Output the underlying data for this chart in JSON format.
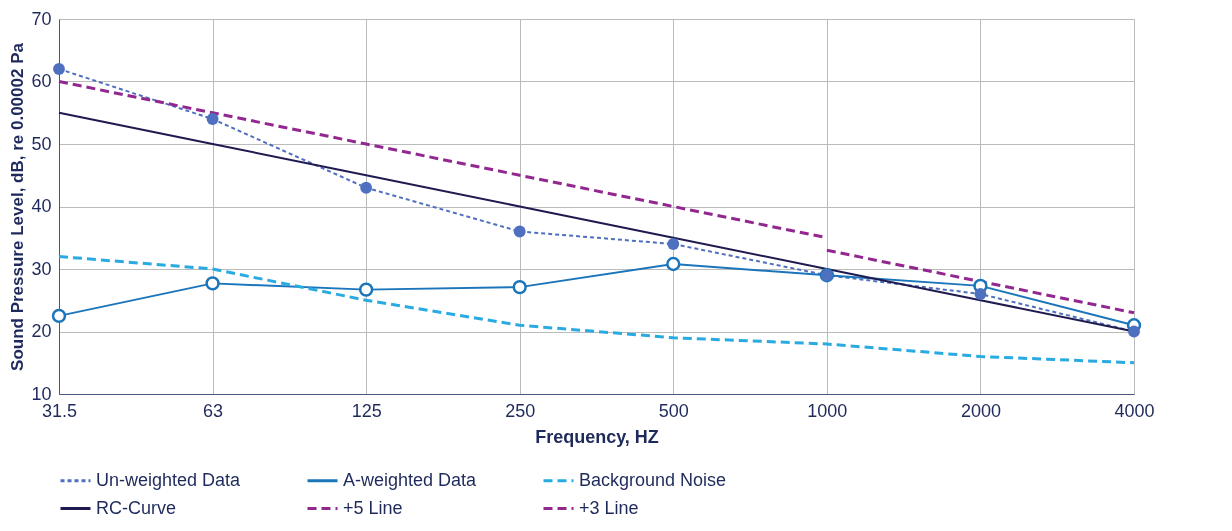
{
  "chart_data": {
    "type": "line",
    "xlabel": "Frequency, HZ",
    "ylabel": "Sound Pressure Level, dB, re 0.00002 Pa",
    "categories": [
      "31.5",
      "63",
      "125",
      "250",
      "500",
      "1000",
      "2000",
      "4000"
    ],
    "ylim": [
      10,
      70
    ],
    "yticks": [
      10,
      20,
      30,
      40,
      50,
      60,
      70
    ],
    "grid": true,
    "legend": "bottom",
    "series": [
      {
        "name": "Un-weighted Data",
        "color": "#4f6fbf",
        "line_style": "dotted",
        "marker": "circle",
        "values": [
          62,
          54,
          43,
          36,
          34,
          29,
          26,
          20
        ]
      },
      {
        "name": "A-weighted Data",
        "color": "#1b75bb",
        "line_style": "solid",
        "marker": "circle",
        "values": [
          22.5,
          27.7,
          26.7,
          27.1,
          30.8,
          29,
          27.3,
          21
        ]
      },
      {
        "name": "Background Noise",
        "color": "#29abe2",
        "line_style": "dashed",
        "marker": "none",
        "values": [
          32,
          30,
          25,
          21,
          19,
          18,
          16,
          15
        ]
      },
      {
        "name": "RC-Curve",
        "color": "#1f1a4f",
        "line_style": "solid",
        "marker": "none",
        "values": [
          55,
          50,
          45,
          40,
          35,
          30,
          25,
          20
        ]
      },
      {
        "name": "+5 Line",
        "color": "#922790",
        "line_style": "dashed",
        "marker": "none",
        "values": [
          60,
          55,
          50,
          45,
          40,
          35,
          null,
          null
        ]
      },
      {
        "name": "+3 Line",
        "color": "#922790",
        "line_style": "dashed",
        "marker": "none",
        "values": [
          null,
          null,
          null,
          null,
          null,
          33,
          28,
          23
        ]
      }
    ]
  }
}
